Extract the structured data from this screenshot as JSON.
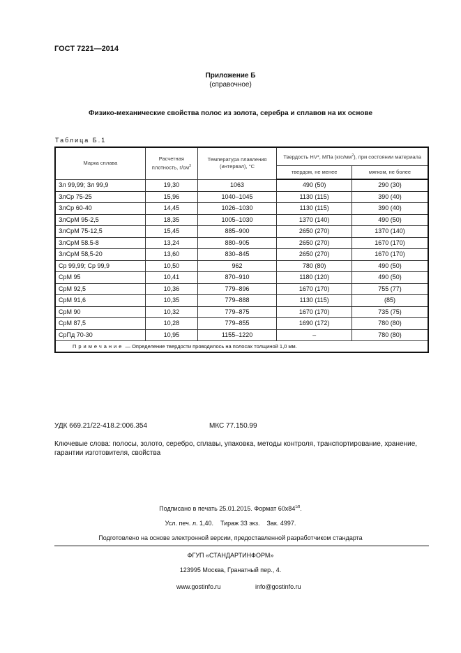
{
  "doc_code": "ГОСТ 7221—2014",
  "annex": {
    "title": "Приложение Б",
    "subtitle": "(справочное)"
  },
  "section_title": "Физико-механические свойства полос из золота, серебра и сплавов на их основе",
  "table": {
    "caption": "Таблица Б.1",
    "headers": {
      "alloy": "Марка сплава",
      "density": "Расчетная плотность, г/см",
      "density_sup": "3",
      "melting": "Температура плавления (интервал), °С",
      "hardness": "Твердость HV*, МПа (кгс/мм",
      "hardness_sup": "2",
      "hardness_end": "), при состоянии материала",
      "hard": "твердом, не менее",
      "soft": "мягком, не более"
    },
    "rows": [
      [
        "Зл 99,99; Зл 99,9",
        "19,30",
        "1063",
        "490 (50)",
        "290 (30)"
      ],
      [
        "ЗлСр 75-25",
        "15,96",
        "1040–1045",
        "1130 (115)",
        "390 (40)"
      ],
      [
        "ЗлСр 60-40",
        "14,45",
        "1026–1030",
        "1130 (115)",
        "390 (40)"
      ],
      [
        "ЗлСрМ 95-2,5",
        "18,35",
        "1005–1030",
        "1370 (140)",
        "490 (50)"
      ],
      [
        "ЗлСрМ 75-12,5",
        "15,45",
        "885–900",
        "2650 (270)",
        "1370 (140)"
      ],
      [
        "ЗлСрМ 58.5-8",
        "13,24",
        "880–905",
        "2650 (270)",
        "1670 (170)"
      ],
      [
        "ЗлСрМ 58,5-20",
        "13,60",
        "830–845",
        "2650 (270)",
        "1670 (170)"
      ],
      [
        "Ср 99,99; Ср 99,9",
        "10,50",
        "962",
        "780 (80)",
        "490 (50)"
      ],
      [
        "СрМ 95",
        "10,41",
        "870–910",
        "1180 (120)",
        "490 (50)"
      ],
      [
        "СрМ 92,5",
        "10,36",
        "779–896",
        "1670 (170)",
        "755 (77)"
      ],
      [
        "СрМ 91,6",
        "10,35",
        "779–888",
        "1130 (115)",
        "(85)"
      ],
      [
        "СрМ 90",
        "10,32",
        "779–875",
        "1670 (170)",
        "735 (75)"
      ],
      [
        "СрМ 87,5",
        "10,28",
        "779–855",
        "1690 (172)",
        "780 (80)"
      ],
      [
        "СрПд 70-30",
        "10,95",
        "1155–1220",
        "–",
        "780 (80)"
      ]
    ],
    "note_label": "Примечание",
    "note_text": "— Определение твердости проводилось на полосах толщиной 1,0 мм."
  },
  "udk": "УДК 669.21/22-418.2:006.354",
  "mks": "МКС 77.150.99",
  "keywords": "Ключевые слова: полосы, золото, серебро, сплавы, упаковка, методы контроля, транспортирование, хранение, гарантии изготовителя, свойства",
  "imprint": {
    "signed": "Подписано в печать 25.01.2015. Формат 60x84",
    "format_frac": "1/8",
    "print_info": "Усл. печ. л. 1,40.    Тираж 33 экз.    Зак. 4997.",
    "prepared": "Подготовлено на основе электронной версии, предоставленной разработчиком стандарта",
    "publisher": "ФГУП «СТАНДАРТИНФОРМ»",
    "address": "123995 Москва, Гранатный пер., 4.",
    "website": "www.gostinfo.ru",
    "email": "info@gostinfo.ru"
  }
}
